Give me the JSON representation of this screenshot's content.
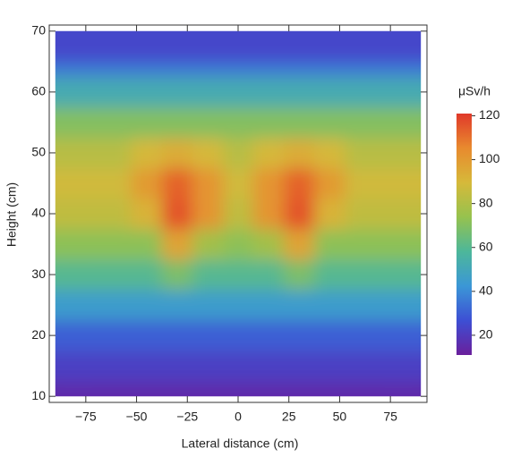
{
  "chart_data": {
    "type": "heatmap",
    "xlabel": "Lateral distance (cm)",
    "ylabel": "Height (cm)",
    "colorbar_title": "μSv/h",
    "x": [
      -90,
      -75,
      -60,
      -45,
      -30,
      -15,
      0,
      15,
      30,
      45,
      60,
      75,
      90
    ],
    "y": [
      10,
      15,
      20,
      25,
      30,
      35,
      40,
      45,
      50,
      55,
      60,
      65,
      70
    ],
    "z": [
      [
        15,
        15,
        15,
        15,
        15,
        15,
        15,
        15,
        15,
        15,
        15,
        15,
        15
      ],
      [
        22,
        22,
        22,
        22,
        22,
        22,
        22,
        22,
        22,
        22,
        22,
        22,
        22
      ],
      [
        30,
        30,
        30,
        30,
        30,
        30,
        30,
        30,
        30,
        30,
        30,
        30,
        30
      ],
      [
        45,
        45,
        45,
        45,
        45,
        45,
        45,
        45,
        45,
        45,
        45,
        45,
        45
      ],
      [
        60,
        60,
        60,
        60,
        68,
        60,
        60,
        60,
        68,
        60,
        60,
        60,
        60
      ],
      [
        72,
        72,
        72,
        72,
        97,
        77,
        72,
        77,
        97,
        72,
        72,
        72,
        72
      ],
      [
        84,
        84,
        84,
        92,
        116,
        102,
        84,
        102,
        116,
        92,
        84,
        84,
        84
      ],
      [
        88,
        88,
        88,
        100,
        113,
        102,
        88,
        102,
        113,
        100,
        88,
        88,
        88
      ],
      [
        82,
        82,
        82,
        90,
        94,
        90,
        82,
        90,
        94,
        90,
        82,
        82,
        82
      ],
      [
        70,
        70,
        70,
        70,
        70,
        70,
        70,
        70,
        70,
        70,
        70,
        70,
        70
      ],
      [
        52,
        52,
        52,
        52,
        52,
        52,
        52,
        52,
        52,
        52,
        52,
        52,
        52
      ],
      [
        36,
        36,
        36,
        36,
        36,
        36,
        36,
        36,
        36,
        36,
        36,
        36,
        36
      ],
      [
        24,
        24,
        24,
        24,
        24,
        24,
        24,
        24,
        24,
        24,
        24,
        24,
        24
      ]
    ],
    "colormap": [
      "#6a1f9c",
      "#3d4fd4",
      "#3b97d6",
      "#4db79a",
      "#96c24e",
      "#d6b93a",
      "#e88a2e",
      "#e0392a"
    ],
    "zlim": [
      11,
      121
    ],
    "zticks": [
      20,
      40,
      60,
      80,
      100,
      120
    ],
    "xlim": [
      -93,
      93
    ],
    "xticks": [
      {
        "value": -75,
        "label": "−75"
      },
      {
        "value": -50,
        "label": "−50"
      },
      {
        "value": -25,
        "label": "−25"
      },
      0,
      25,
      50,
      75
    ],
    "ylim": [
      9,
      71
    ],
    "yticks": [
      10,
      20,
      30,
      40,
      50,
      60,
      70
    ]
  }
}
